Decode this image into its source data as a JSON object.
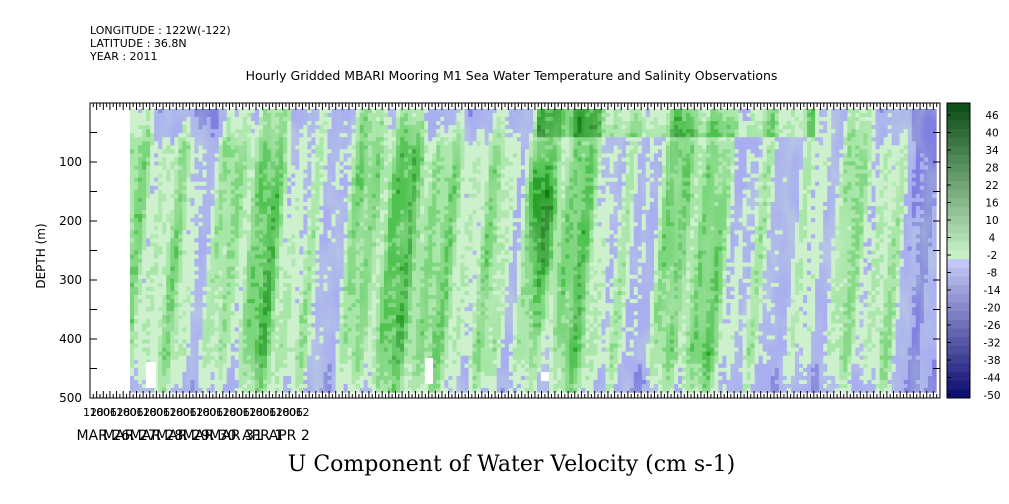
{
  "meta": {
    "longitude": "LONGITUDE : 122W(-122)",
    "latitude": "LATITUDE : 36.8N",
    "year": "YEAR : 2011"
  },
  "chart_data": {
    "type": "heatmap",
    "title": "Hourly Gridded MBARI Mooring M1 Sea Water Temperature and Salinity Observations",
    "xlabel": "U Component of Water Velocity (cm s-1)",
    "ylabel": "DEPTH (m)",
    "x_range_hours": [
      -12,
      756
    ],
    "x_hour_ticks": [
      "12",
      "18",
      "00",
      "06",
      "12",
      "18",
      "00",
      "06",
      "12",
      "18",
      "00",
      "06",
      "12",
      "18",
      "00",
      "06",
      "12",
      "18",
      "00",
      "06",
      "12",
      "18",
      "00",
      "06",
      "12",
      "18",
      "00",
      "06",
      "12",
      "18",
      "00",
      "06",
      "12"
    ],
    "x_date_ticks": [
      "MAR 26",
      "MAR 27",
      "MAR 28",
      "MAR 29",
      "MAR 30",
      "MAR 31",
      "APR 1",
      "APR 2"
    ],
    "y_range": [
      500,
      0
    ],
    "y_ticks": [
      100,
      200,
      300,
      400,
      500
    ],
    "data_extent_depth": [
      10,
      490
    ],
    "colorbar": {
      "labels": [
        "46",
        "40",
        "34",
        "28",
        "22",
        "16",
        "10",
        "4",
        "-2",
        "-8",
        "-14",
        "-20",
        "-26",
        "-32",
        "-38",
        "-44",
        "-50"
      ],
      "range": [
        -50,
        52
      ]
    },
    "pattern_description_values": {
      "surface_layer": "mostly negative (-2 to -14) near 0-100 m",
      "mid_depth": "positive (4 to 22) between 100-450 m",
      "peak_positive": "around 30 near MAR 30 06h at 200-250 m"
    }
  }
}
